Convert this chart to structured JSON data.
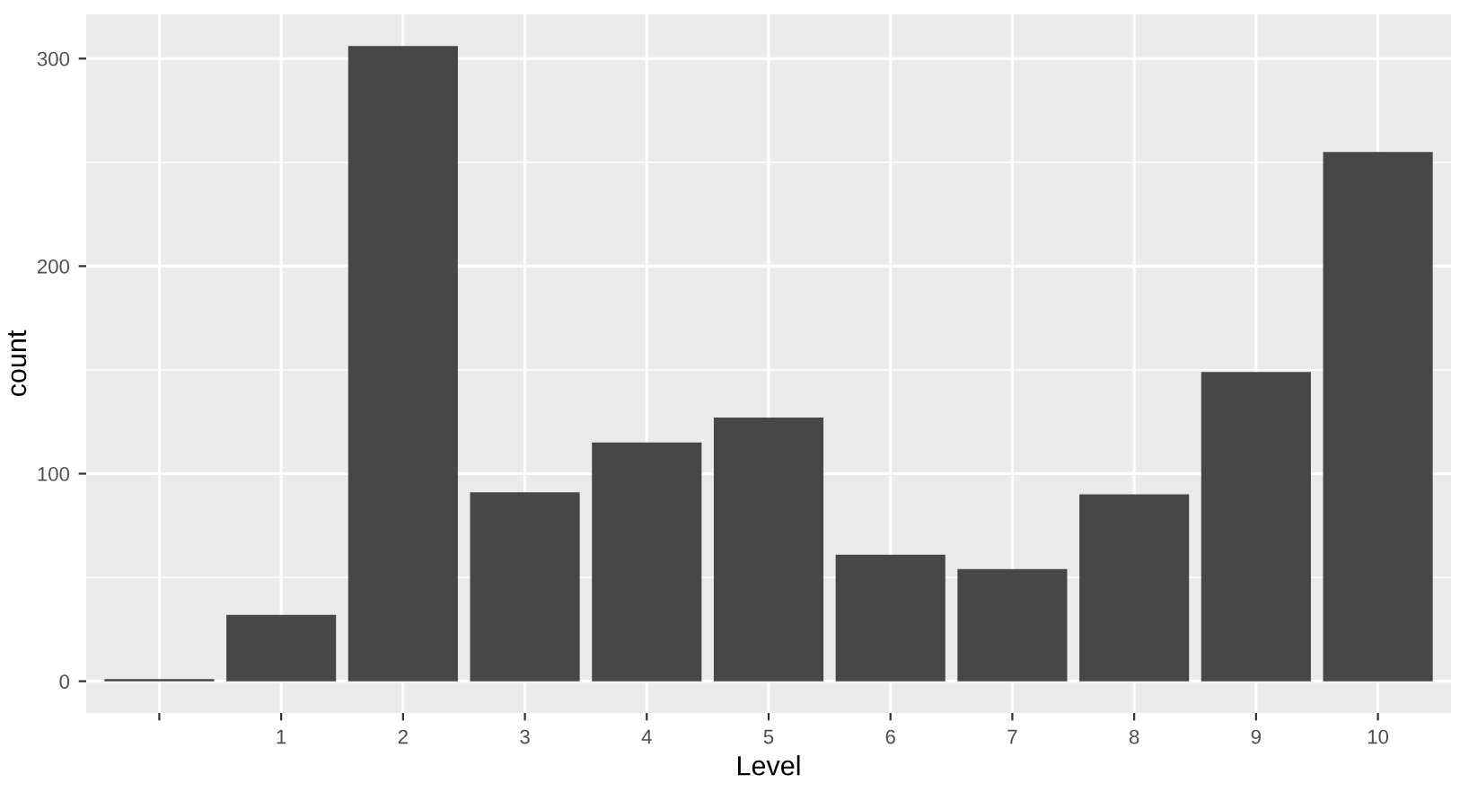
{
  "chart_data": {
    "type": "bar",
    "xlabel": "Level",
    "ylabel": "count",
    "categories": [
      null,
      "1",
      "2",
      "3",
      "4",
      "5",
      "6",
      "7",
      "8",
      "9",
      "10"
    ],
    "values": [
      1,
      32,
      306,
      91,
      115,
      127,
      61,
      54,
      90,
      149,
      255
    ],
    "color": "#474747",
    "ylim": [
      -15.3,
      321.3
    ],
    "yticks": [
      0,
      100,
      200,
      300
    ],
    "grid": true
  }
}
